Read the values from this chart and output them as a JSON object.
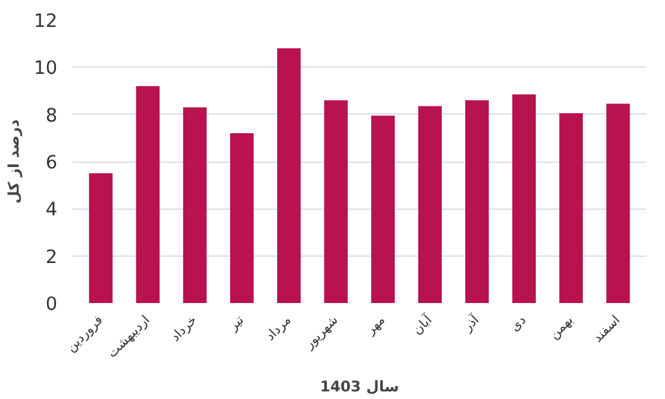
{
  "chart_data": {
    "type": "bar",
    "xlabel": "سال 1403",
    "ylabel": "درصد از کل",
    "categories": [
      "فروردین",
      "اردیبهشت",
      "خرداد",
      "تیر",
      "مرداد",
      "شهریور",
      "مهر",
      "آبان",
      "آذر",
      "دی",
      "بهمن",
      "اسفند"
    ],
    "values": [
      5.5,
      9.2,
      8.3,
      7.2,
      10.8,
      8.6,
      7.95,
      8.35,
      8.6,
      8.85,
      8.05,
      8.45
    ],
    "color": "#b8124f",
    "ylim": [
      0,
      12
    ],
    "yticks": [
      0,
      2,
      4,
      6,
      8,
      10,
      12
    ],
    "grid": "y"
  }
}
